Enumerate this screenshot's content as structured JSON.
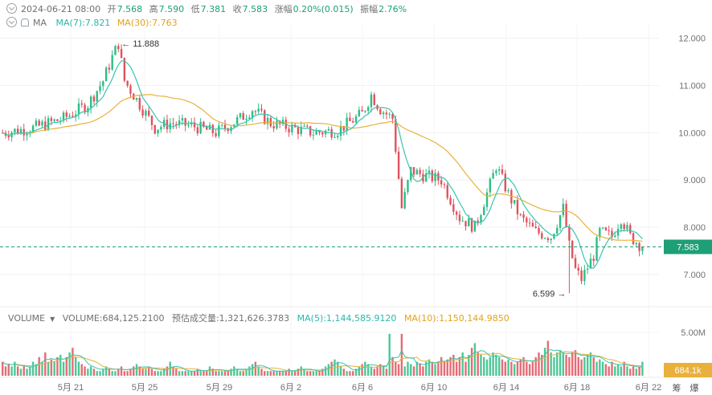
{
  "header": {
    "datetime": "2024-06-21 08:00",
    "open_label": "开",
    "open": "7.568",
    "high_label": "高",
    "high": "7.590",
    "low_label": "低",
    "low": "7.381",
    "close_label": "收",
    "close": "7.583",
    "change_label": "涨幅",
    "change": "0.20%(0.015)",
    "amplitude_label": "振幅",
    "amplitude": "2.76%",
    "ma_label": "MA",
    "ma7": "MA(7):7.821",
    "ma30": "MA(30):7.763"
  },
  "volume_header": {
    "label": "VOLUME",
    "volume": "VOLUME:684,125.2100",
    "est_volume": "预估成交量:1,321,626.3783",
    "ma5": "MA(5):1,144,585.9120",
    "ma10": "MA(10):1,150,144.9850"
  },
  "colors": {
    "up": "#2ebd85",
    "down": "#e0525d",
    "ma7": "#3cc3b0",
    "ma30": "#e9b13b",
    "price_tag": "#1e9f75",
    "vol_tag": "#e9b13b"
  },
  "chart_data": {
    "type": "candlestick",
    "x_ticks": [
      "5月 21",
      "5月 25",
      "5月 29",
      "6月 2",
      "6月 6",
      "6月 10",
      "6月 14",
      "6月 18",
      "6月 22"
    ],
    "y_ticks": [
      "12.000",
      "11.000",
      "10.000",
      "9.000",
      "8.000",
      "7.000"
    ],
    "ylim": [
      6.35,
      12.3
    ],
    "volume_ticks": [
      "5.00M"
    ],
    "last_price": 7.583,
    "last_price_label": "7.583",
    "last_volume_label": "684.1k",
    "max_annotation": {
      "label": "11.888",
      "value": 11.888,
      "date": "5月 22"
    },
    "min_annotation": {
      "label": "6.599",
      "value": 6.599,
      "date": "6月 18"
    },
    "series": [
      {
        "name": "MA(7)",
        "value": 7.821
      },
      {
        "name": "MA(30)",
        "value": 7.763
      }
    ],
    "price_path": [
      [
        0,
        10.0
      ],
      [
        10,
        10.1
      ],
      [
        20,
        10.3
      ],
      [
        28,
        10.6
      ],
      [
        33,
        11.1
      ],
      [
        36,
        11.6
      ],
      [
        38,
        11.888
      ],
      [
        40,
        11.1
      ],
      [
        45,
        10.6
      ],
      [
        50,
        10.1
      ],
      [
        55,
        10.2
      ],
      [
        62,
        10.15
      ],
      [
        70,
        10.0
      ],
      [
        78,
        10.3
      ],
      [
        82,
        10.5
      ],
      [
        88,
        10.2
      ],
      [
        95,
        10.1
      ],
      [
        102,
        10.0
      ],
      [
        110,
        10.05
      ],
      [
        118,
        10.4
      ],
      [
        121,
        10.8
      ],
      [
        124,
        10.5
      ],
      [
        128,
        10.3
      ],
      [
        131,
        8.4
      ],
      [
        134,
        9.2
      ],
      [
        138,
        9.1
      ],
      [
        144,
        9.0
      ],
      [
        150,
        8.2
      ],
      [
        155,
        8.0
      ],
      [
        160,
        8.9
      ],
      [
        162,
        9.3
      ],
      [
        166,
        8.7
      ],
      [
        170,
        8.2
      ],
      [
        175,
        7.9
      ],
      [
        180,
        7.8
      ],
      [
        184,
        8.4
      ],
      [
        186,
        7.6
      ],
      [
        188,
        7.1
      ],
      [
        190,
        6.9
      ],
      [
        194,
        7.4
      ],
      [
        196,
        7.9
      ],
      [
        200,
        7.8
      ],
      [
        203,
        8.2
      ],
      [
        206,
        7.8
      ],
      [
        210,
        7.58
      ]
    ],
    "volume_series": {
      "note": "relative heights of volume bars, max scaled to 5.00M ~ 6.5M",
      "levels": [
        0.3,
        0.2,
        0.25,
        0.2,
        0.3,
        0.2,
        0.15,
        0.2,
        0.15,
        0.2,
        0.3,
        0.25,
        0.4,
        0.3,
        0.5,
        0.3,
        0.35,
        0.3,
        0.4,
        0.45,
        0.3,
        0.4,
        0.5,
        0.6,
        0.4,
        0.3,
        0.25,
        0.2,
        0.15,
        0.2,
        0.15,
        0.1,
        0.1,
        0.15,
        0.2,
        0.15,
        0.1,
        0.1,
        0.15,
        0.2,
        0.1,
        0.1,
        0.15,
        0.2,
        0.25,
        0.2,
        0.15,
        0.15,
        0.2,
        0.15,
        0.1,
        0.1,
        0.1,
        0.15,
        0.2,
        0.3,
        0.2,
        0.15,
        0.1,
        0.1,
        0.1,
        0.1,
        0.1,
        0.1,
        0.15,
        0.1,
        0.1,
        0.1,
        0.2,
        0.15,
        0.1,
        0.1,
        0.1,
        0.1,
        0.1,
        0.15,
        0.2,
        0.15,
        0.1,
        0.1,
        0.15,
        0.2,
        0.25,
        0.3,
        0.2,
        0.15,
        0.1,
        0.1,
        0.1,
        0.1,
        0.1,
        0.1,
        0.1,
        0.1,
        0.15,
        0.1,
        0.1,
        0.15,
        0.2,
        0.15,
        0.1,
        0.1,
        0.1,
        0.1,
        0.1,
        0.15,
        0.2,
        0.25,
        0.3,
        0.35,
        0.3,
        0.2,
        0.15,
        0.1,
        0.1,
        0.1,
        0.15,
        0.2,
        0.25,
        0.3,
        0.25,
        0.2,
        0.15,
        0.2,
        0.25,
        0.2,
        0.15,
        0.9,
        0.4,
        0.3,
        0.25,
        0.2,
        0.2,
        0.3,
        0.25,
        0.2,
        0.3,
        0.25,
        0.2,
        0.3,
        0.35,
        0.3,
        0.25,
        0.3,
        0.4,
        0.3,
        0.35,
        0.4,
        0.45,
        0.3,
        0.4,
        0.5,
        0.3,
        0.45,
        0.6,
        0.7,
        0.5,
        0.45,
        0.4,
        0.35,
        0.4,
        0.5,
        0.45,
        0.4,
        0.35,
        0.3,
        0.35,
        0.3,
        0.25,
        0.3,
        0.35,
        0.4,
        0.3,
        0.25,
        0.3,
        0.4,
        0.5,
        0.45,
        0.6,
        0.75,
        0.5,
        0.4,
        0.5,
        0.55,
        0.5,
        0.45,
        0.4,
        0.5,
        0.55,
        0.4,
        0.35,
        0.4,
        0.45,
        0.5,
        0.4,
        0.3,
        0.35,
        0.3,
        0.25,
        0.2
      ]
    }
  },
  "axis_right_labels": {
    "scroll_icons": [
      "筹",
      "爆"
    ]
  }
}
